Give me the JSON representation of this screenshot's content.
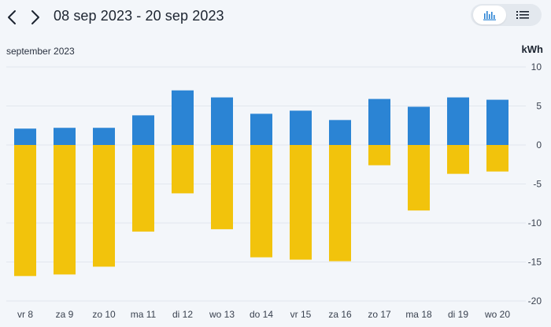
{
  "header": {
    "date_range": "08 sep 2023 - 20 sep 2023",
    "prev_icon": "chevron-left-icon",
    "next_icon": "chevron-right-icon",
    "view_toggle": [
      {
        "icon": "bar-chart-icon",
        "active": true
      },
      {
        "icon": "list-icon",
        "active": false
      }
    ]
  },
  "chart_header": {
    "month": "september 2023",
    "unit": "kWh"
  },
  "colors": {
    "positive": "#2b84d4",
    "negative": "#f2c30c",
    "accent": "#2b84d4",
    "grid": "#e2e7ee"
  },
  "chart_data": {
    "type": "bar",
    "categories": [
      "vr 8",
      "za 9",
      "zo 10",
      "ma 11",
      "di 12",
      "wo 13",
      "do 14",
      "vr 15",
      "za 16",
      "zo 17",
      "ma 18",
      "di 19",
      "wo 20"
    ],
    "series": [
      {
        "values": [
          2.1,
          2.2,
          2.2,
          3.8,
          7.0,
          6.1,
          4.0,
          4.4,
          3.2,
          5.9,
          4.9,
          6.1,
          5.8
        ]
      },
      {
        "values": [
          -16.8,
          -16.6,
          -15.6,
          -11.1,
          -6.2,
          -10.8,
          -14.4,
          -14.7,
          -14.9,
          -2.6,
          -8.4,
          -3.7,
          -3.4
        ]
      }
    ],
    "yticks": [
      "10",
      "5",
      "0",
      "-5",
      "-10",
      "-15",
      "-20"
    ],
    "ylim": [
      -20,
      10
    ],
    "ylabel": "kWh",
    "grid": true,
    "stacked": true
  }
}
